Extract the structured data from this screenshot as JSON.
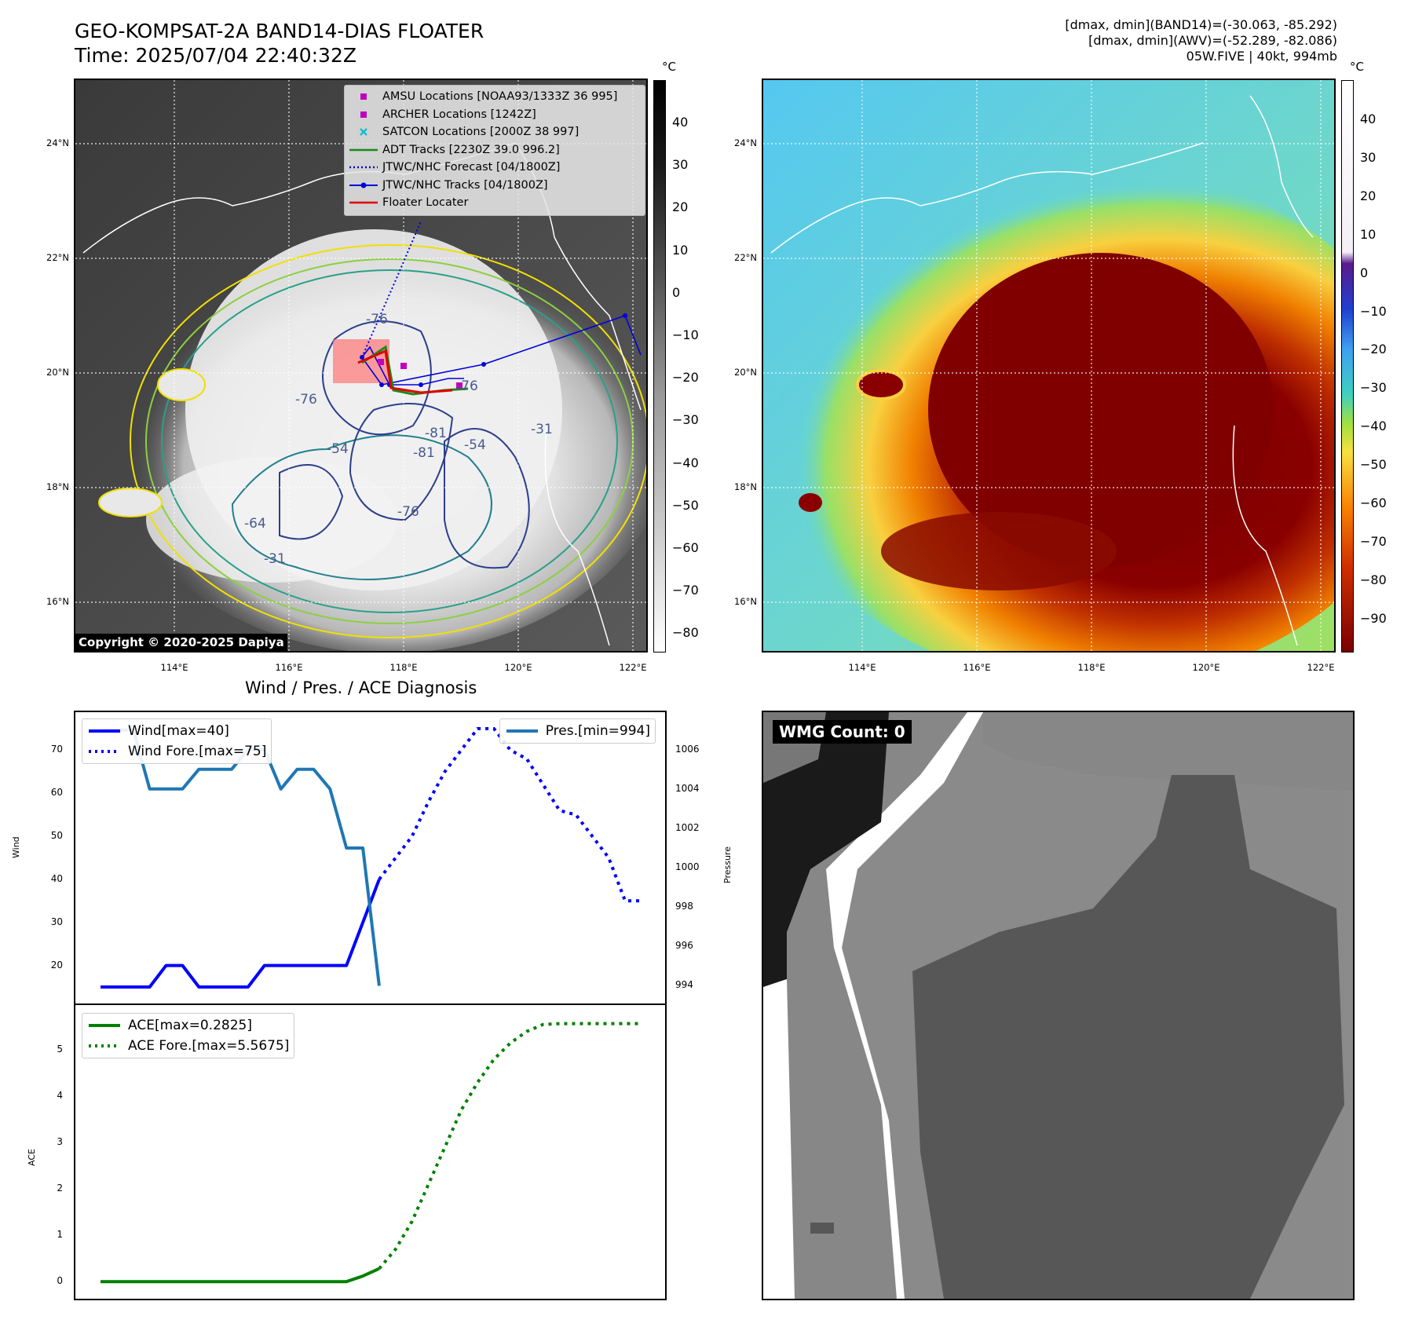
{
  "header": {
    "title": "GEO-KOMPSAT-2A BAND14-DIAS FLOATER",
    "time": "Time: 2025/07/04 22:40:32Z",
    "stats_band14": "[dmax, dmin](BAND14)=(-30.063, -85.292)",
    "stats_awv": "[dmax, dmin](AWV)=(-52.289, -82.086)",
    "storm": "05W.FIVE | 40kt, 994mb"
  },
  "map_left": {
    "legend": [
      {
        "label": "AMSU Locations [NOAA93/1333Z 36 995]",
        "marker": "square",
        "color": "#c000c0"
      },
      {
        "label": "ARCHER Locations [1242Z]",
        "marker": "square",
        "color": "#c000c0"
      },
      {
        "label": "SATCON Locations [2000Z 38 997]",
        "marker": "x",
        "color": "#17becf"
      },
      {
        "label": "ADT Tracks [2230Z 39.0 996.2]",
        "marker": "line",
        "color": "#1a8a1a"
      },
      {
        "label": "JTWC/NHC Forecast [04/1800Z]",
        "marker": "dotted",
        "color": "#0000dd"
      },
      {
        "label": "JTWC/NHC Tracks [04/1800Z]",
        "marker": "line-dot",
        "color": "#0000dd"
      },
      {
        "label": "Floater Locater",
        "marker": "line",
        "color": "#e00000"
      }
    ],
    "copyright": "Copyright © 2020-2025 Dapiya",
    "colorbar_unit": "°C",
    "colorbar_ticks": [
      "40",
      "30",
      "20",
      "10",
      "0",
      "−10",
      "−20",
      "−30",
      "−40",
      "−50",
      "−60",
      "−70",
      "−80"
    ],
    "contour_labels": [
      "-76",
      "-76",
      "-76",
      "-81",
      "-54",
      "-64",
      "-81",
      "-76",
      "-54",
      "-31",
      "-31"
    ]
  },
  "map_right": {
    "colorbar_unit": "°C",
    "colorbar_ticks": [
      "40",
      "30",
      "20",
      "10",
      "0",
      "−10",
      "−20",
      "−30",
      "−40",
      "−50",
      "−60",
      "−70",
      "−80",
      "−90"
    ]
  },
  "lat_labels": [
    "24°N",
    "22°N",
    "20°N",
    "18°N",
    "16°N"
  ],
  "lon_labels": [
    "114°E",
    "116°E",
    "118°E",
    "120°E",
    "122°E"
  ],
  "diagnosis_title": "Wind / Pres. / ACE Diagnosis",
  "wind_panel": {
    "legend_wind": "Wind[max=40]",
    "legend_wind_fore": "Wind Fore.[max=75]",
    "legend_pres": "Pres.[min=994]",
    "ylabel": "Wind",
    "ylabel_right": "Pressure",
    "yticks": [
      "70",
      "60",
      "50",
      "40",
      "30",
      "20"
    ],
    "yticks_right": [
      "1006",
      "1004",
      "1002",
      "1000",
      "998",
      "996",
      "994"
    ]
  },
  "ace_panel": {
    "legend_ace": "ACE[max=0.2825]",
    "legend_ace_fore": "ACE Fore.[max=5.5675]",
    "ylabel": "ACE",
    "yticks": [
      "5",
      "4",
      "3",
      "2",
      "1",
      "0"
    ]
  },
  "wmg": {
    "label": "WMG Count: 0"
  },
  "chart_data": [
    {
      "type": "line",
      "title": "Wind / Pres. / ACE Diagnosis",
      "ylabel": "Wind",
      "ylim": [
        13,
        77
      ],
      "series": [
        {
          "name": "Wind[max=40]",
          "color": "#0000ff",
          "style": "solid",
          "x": [
            0,
            1,
            2,
            3,
            4,
            5,
            6,
            7,
            8,
            9,
            10,
            11,
            12,
            13,
            14,
            15,
            16,
            17
          ],
          "values": [
            15,
            15,
            15,
            15,
            20,
            20,
            15,
            15,
            15,
            15,
            20,
            20,
            20,
            20,
            20,
            20,
            30,
            40
          ]
        },
        {
          "name": "Wind Fore.[max=75]",
          "color": "#0000ff",
          "style": "dotted",
          "x": [
            17,
            18,
            19,
            20,
            21,
            22,
            23,
            24,
            25,
            26,
            27,
            28,
            29,
            30,
            31,
            32,
            33
          ],
          "values": [
            40,
            45,
            50,
            58,
            65,
            70,
            75,
            75,
            70,
            68,
            62,
            56,
            55,
            50,
            45,
            35,
            35
          ]
        }
      ]
    },
    {
      "type": "line",
      "ylabel": "Pressure",
      "ylim": [
        993.5,
        1007.5
      ],
      "series": [
        {
          "name": "Pres.[min=994]",
          "color": "#1f77b4",
          "style": "solid",
          "x": [
            0,
            1,
            2,
            3,
            4,
            5,
            6,
            7,
            8,
            9,
            10,
            11,
            12,
            13,
            14,
            15,
            16,
            17
          ],
          "values": [
            1007,
            1007,
            1007,
            1004,
            1004,
            1004,
            1005,
            1005,
            1005,
            1006,
            1006,
            1004,
            1005,
            1005,
            1004,
            1001,
            1001,
            994
          ]
        }
      ]
    },
    {
      "type": "line",
      "ylabel": "ACE",
      "ylim": [
        -0.2,
        5.8
      ],
      "series": [
        {
          "name": "ACE[max=0.2825]",
          "color": "#008000",
          "style": "solid",
          "x": [
            0,
            1,
            2,
            3,
            4,
            5,
            6,
            7,
            8,
            9,
            10,
            11,
            12,
            13,
            14,
            15,
            16,
            17
          ],
          "values": [
            0,
            0,
            0,
            0,
            0,
            0,
            0,
            0,
            0,
            0,
            0,
            0,
            0,
            0,
            0,
            0,
            0.12,
            0.28
          ]
        },
        {
          "name": "ACE Fore.[max=5.5675]",
          "color": "#008000",
          "style": "dotted",
          "x": [
            17,
            18,
            19,
            20,
            21,
            22,
            23,
            24,
            25,
            26,
            27,
            28,
            29,
            30,
            31,
            32,
            33
          ],
          "values": [
            0.28,
            0.7,
            1.3,
            2.1,
            2.9,
            3.7,
            4.3,
            4.8,
            5.15,
            5.4,
            5.55,
            5.57,
            5.57,
            5.57,
            5.57,
            5.57,
            5.57
          ]
        }
      ]
    }
  ]
}
